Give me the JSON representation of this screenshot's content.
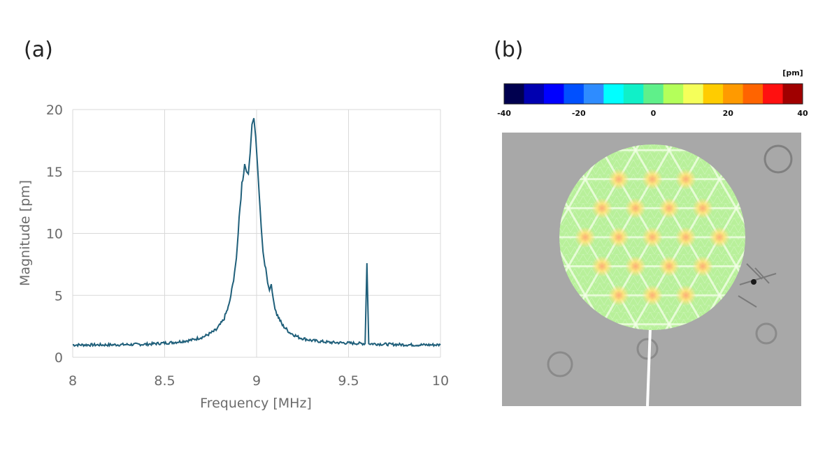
{
  "panels": {
    "a_label": "(a)",
    "b_label": "(b)"
  },
  "chart_data": [
    {
      "type": "line",
      "xlabel": "Frequency [MHz]",
      "ylabel": "Magnitude [pm]",
      "xlim": [
        8,
        10
      ],
      "ylim": [
        0,
        20
      ],
      "x_ticks": [
        "8",
        "8.5",
        "9",
        "9.5",
        "10"
      ],
      "y_ticks": [
        "0",
        "5",
        "10",
        "15",
        "20"
      ],
      "grid": true,
      "line_color": "#1f5f7a",
      "series": [
        {
          "x": [
            8.0,
            8.2,
            8.4,
            8.55,
            8.65,
            8.72,
            8.78,
            8.82,
            8.85,
            8.87,
            8.89,
            8.905,
            8.92,
            8.935,
            8.945,
            8.955,
            8.965,
            8.975,
            8.985,
            8.995,
            9.005,
            9.015,
            9.025,
            9.035,
            9.05,
            9.06,
            9.07,
            9.08,
            9.09,
            9.11,
            9.14,
            9.18,
            9.23,
            9.3,
            9.4,
            9.5,
            9.59,
            9.6,
            9.61,
            9.7,
            9.85,
            10.0
          ],
          "y": [
            1.0,
            1.0,
            1.05,
            1.2,
            1.4,
            1.7,
            2.2,
            3.0,
            4.2,
            5.8,
            8.0,
            11.0,
            14.0,
            15.6,
            15.0,
            14.8,
            16.5,
            18.8,
            19.3,
            17.8,
            15.5,
            13.0,
            10.5,
            8.5,
            7.2,
            6.0,
            5.4,
            5.9,
            4.6,
            3.5,
            2.6,
            2.0,
            1.6,
            1.35,
            1.2,
            1.15,
            1.1,
            7.6,
            1.1,
            1.05,
            1.0,
            1.0
          ]
        }
      ]
    },
    {
      "type": "heatmap",
      "colorbar_unit": "[pm]",
      "colorbar_range": [
        -40,
        40
      ],
      "colorbar_ticks": [
        "-40",
        "-20",
        "0",
        "20",
        "40"
      ],
      "colorbar_colors": [
        "#00004f",
        "#0000b0",
        "#0000ff",
        "#0050ff",
        "#2e8cff",
        "#00ffff",
        "#10f0c8",
        "#5ff08a",
        "#b4ff5a",
        "#f5ff5a",
        "#ffcc00",
        "#ff9a00",
        "#ff6400",
        "#ff1010",
        "#a00000"
      ],
      "map_base_color": "#b8f09a",
      "hotspot_color": "#ffe27a",
      "background_gray": "#a8a8a8"
    }
  ]
}
